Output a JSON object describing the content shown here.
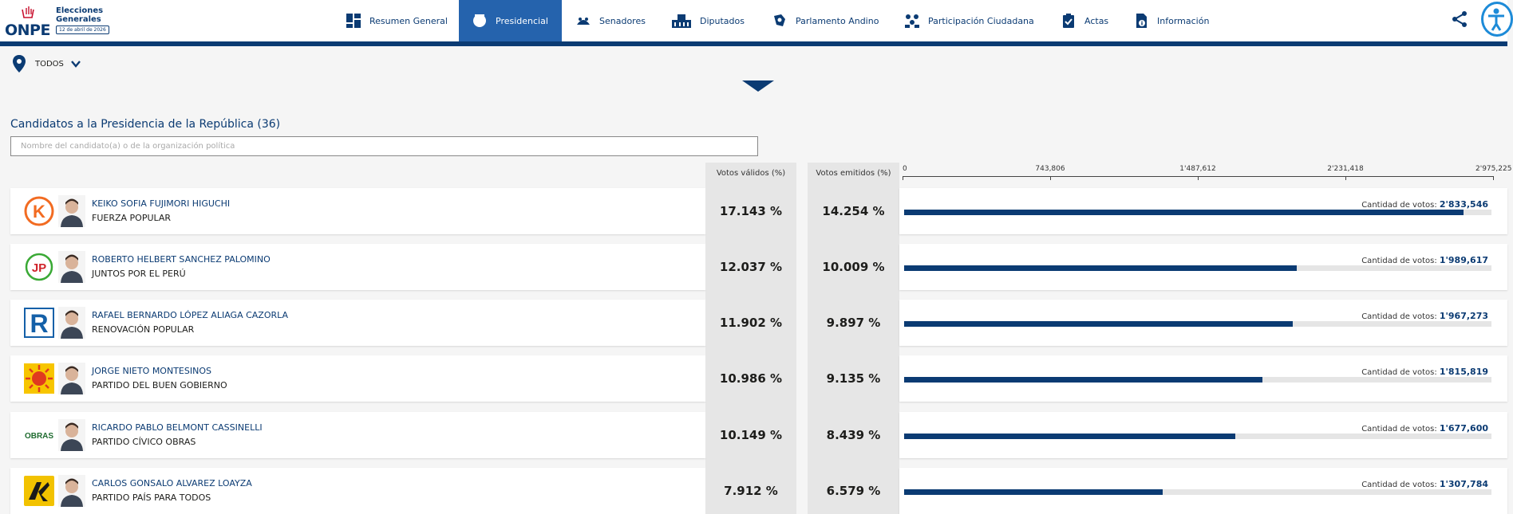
{
  "header": {
    "logo_text": "ONPE",
    "logo_title": "Elecciones Generales",
    "logo_date": "12 de abril de 2026",
    "nav": [
      {
        "label": "Resumen General",
        "icon": "dashboard-icon",
        "active": false
      },
      {
        "label": "Presidencial",
        "icon": "presidential-seal-icon",
        "active": true
      },
      {
        "label": "Senadores",
        "icon": "senate-icon",
        "active": false
      },
      {
        "label": "Diputados",
        "icon": "congress-building-icon",
        "active": false
      },
      {
        "label": "Parlamento Andino",
        "icon": "andean-parliament-icon",
        "active": false
      },
      {
        "label": "Participación Ciudadana",
        "icon": "people-icon",
        "active": false
      },
      {
        "label": "Actas",
        "icon": "clipboard-check-icon",
        "active": false
      },
      {
        "label": "Información",
        "icon": "document-info-icon",
        "active": false
      }
    ]
  },
  "filter": {
    "label": "TODOS"
  },
  "list": {
    "title": "Candidatos a la Presidencia de la República",
    "count": "(36)",
    "search_placeholder": "Nombre del candidato(a) o de la organización política",
    "col_valid": "Votos válidos (%)",
    "col_emit": "Votos emitidos (%)",
    "votes_prefix": "Cantidad de votos:"
  },
  "chart_data": {
    "type": "bar",
    "axis_ticks": [
      "0",
      "743,806",
      "1'487,612",
      "2'231,418",
      "2'975,225"
    ],
    "xlim": [
      0,
      2975225
    ],
    "rows": [
      {
        "candidate": "KEIKO SOFIA FUJIMORI HIGUCHI",
        "party": "FUERZA POPULAR",
        "valid_pct": "17.143 %",
        "emit_pct": "14.254 %",
        "votes_label": "2'833,546",
        "votes": 2833546
      },
      {
        "candidate": "ROBERTO HELBERT SANCHEZ PALOMINO",
        "party": "JUNTOS POR EL PERÚ",
        "valid_pct": "12.037 %",
        "emit_pct": "10.009 %",
        "votes_label": "1'989,617",
        "votes": 1989617
      },
      {
        "candidate": "RAFAEL BERNARDO LÓPEZ ALIAGA CAZORLA",
        "party": "RENOVACIÓN POPULAR",
        "valid_pct": "11.902 %",
        "emit_pct": "9.897 %",
        "votes_label": "1'967,273",
        "votes": 1967273
      },
      {
        "candidate": "JORGE NIETO MONTESINOS",
        "party": "PARTIDO DEL BUEN GOBIERNO",
        "valid_pct": "10.986 %",
        "emit_pct": "9.135 %",
        "votes_label": "1'815,819",
        "votes": 1815819
      },
      {
        "candidate": "RICARDO PABLO BELMONT CASSINELLI",
        "party": "PARTIDO CÍVICO OBRAS",
        "valid_pct": "10.149 %",
        "emit_pct": "8.439 %",
        "votes_label": "1'677,600",
        "votes": 1677600
      },
      {
        "candidate": "CARLOS GONSALO ALVAREZ LOAYZA",
        "party": "PARTIDO PAÍS PARA TODOS",
        "valid_pct": "7.912 %",
        "emit_pct": "6.579 %",
        "votes_label": "1'307,784",
        "votes": 1307784
      }
    ]
  },
  "party_logos": [
    {
      "icon": "fuerza-popular-logo-icon",
      "color": "#f26b21",
      "glyph": "K"
    },
    {
      "icon": "juntos-por-el-peru-logo-icon",
      "color": "#3aa935",
      "glyph": "JP"
    },
    {
      "icon": "renovacion-popular-logo-icon",
      "color": "#1460a8",
      "glyph": "R"
    },
    {
      "icon": "buen-gobierno-logo-icon",
      "color": "#f5a100",
      "glyph": "☀"
    },
    {
      "icon": "civico-obras-logo-icon",
      "color": "#1e6b2f",
      "glyph": "OBRAS"
    },
    {
      "icon": "pais-para-todos-logo-icon",
      "color": "#f2c200",
      "glyph": "K"
    }
  ],
  "colors": {
    "primary": "#0b3b73",
    "active_tab": "#2563ad",
    "bar": "#0b3b73",
    "bar_track": "#e5e5e5"
  }
}
